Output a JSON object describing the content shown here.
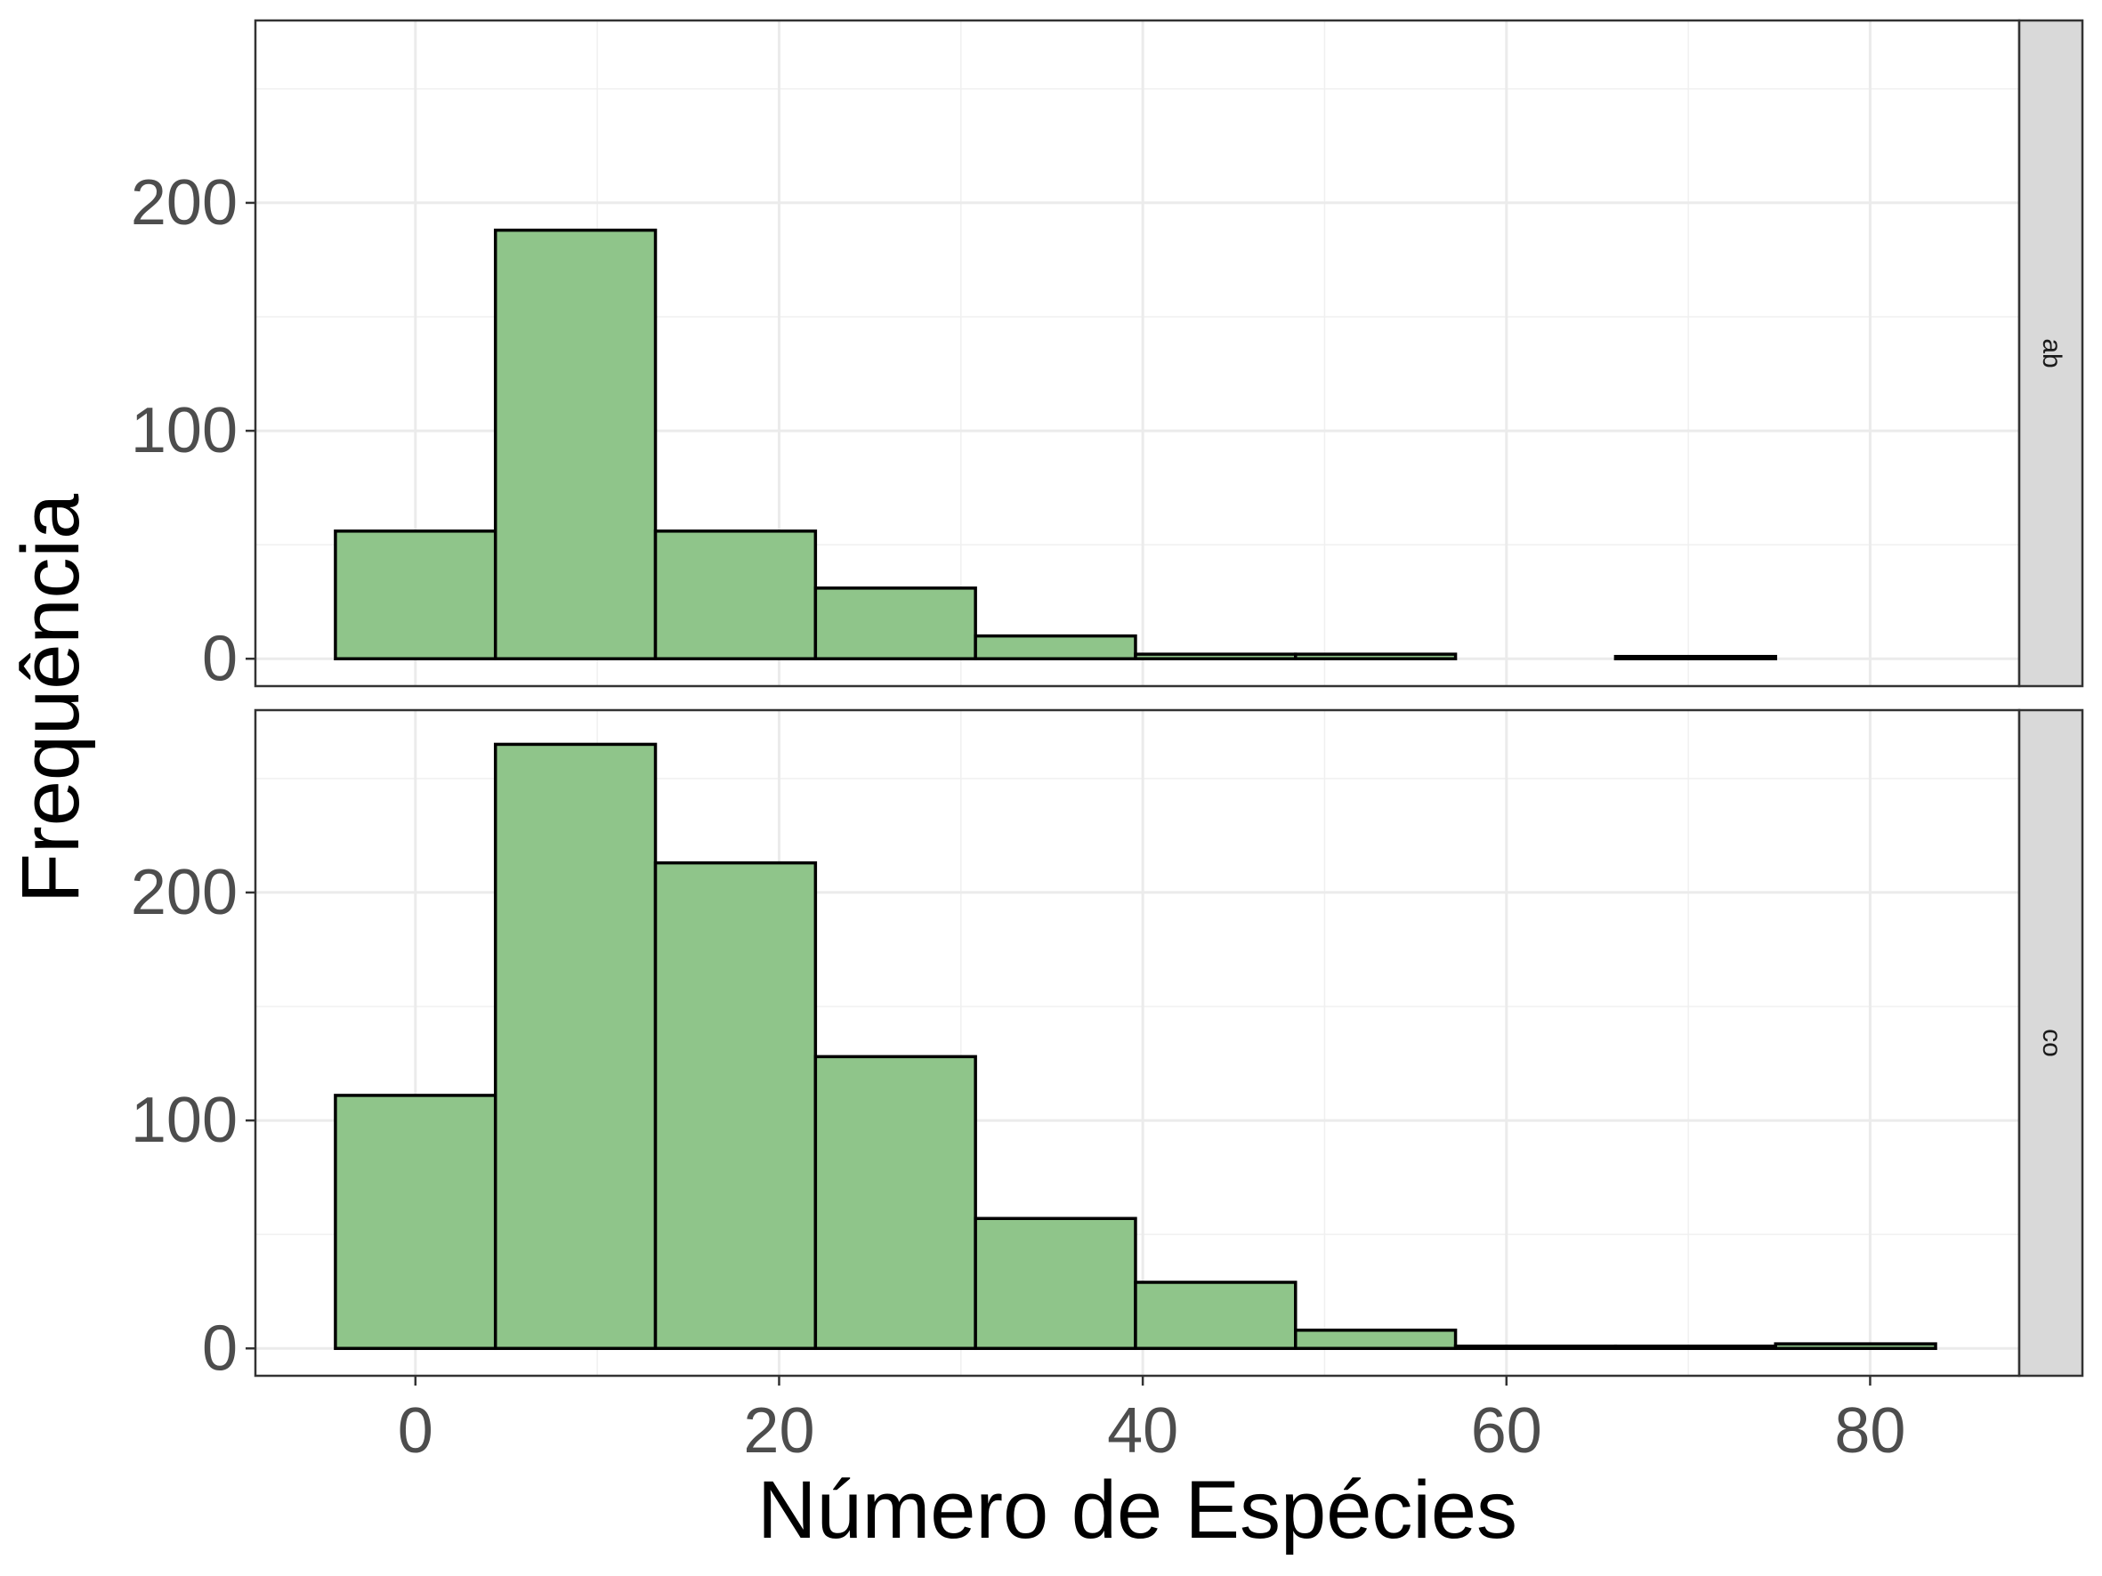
{
  "chart_data": {
    "type": "bar",
    "subtype": "histogram",
    "facet_layout": "vertical",
    "xlabel": "Número de Espécies",
    "ylabel": "Frequência",
    "xlim": [
      -8.8,
      88.2
    ],
    "ylim": [
      -12,
      280
    ],
    "x_ticks": [
      0,
      20,
      40,
      60,
      80
    ],
    "x_tick_labels": [
      "0",
      "20",
      "40",
      "60",
      "80"
    ],
    "y_ticks": [
      0,
      100,
      200
    ],
    "y_tick_labels": [
      "0",
      "100",
      "200"
    ],
    "grid": true,
    "bin_edges": [
      -4.4,
      4.4,
      13.2,
      22.0,
      30.8,
      39.6,
      48.4,
      57.2,
      66.0,
      74.8,
      83.6
    ],
    "fill_color": "#8fc58a",
    "edge_color": "#000000",
    "series": [
      {
        "name": "ab",
        "values": [
          56,
          188,
          56,
          31,
          10,
          2,
          2,
          0,
          1,
          0
        ]
      },
      {
        "name": "co",
        "values": [
          111,
          265,
          213,
          128,
          57,
          29,
          8,
          1,
          1,
          2
        ]
      }
    ]
  }
}
